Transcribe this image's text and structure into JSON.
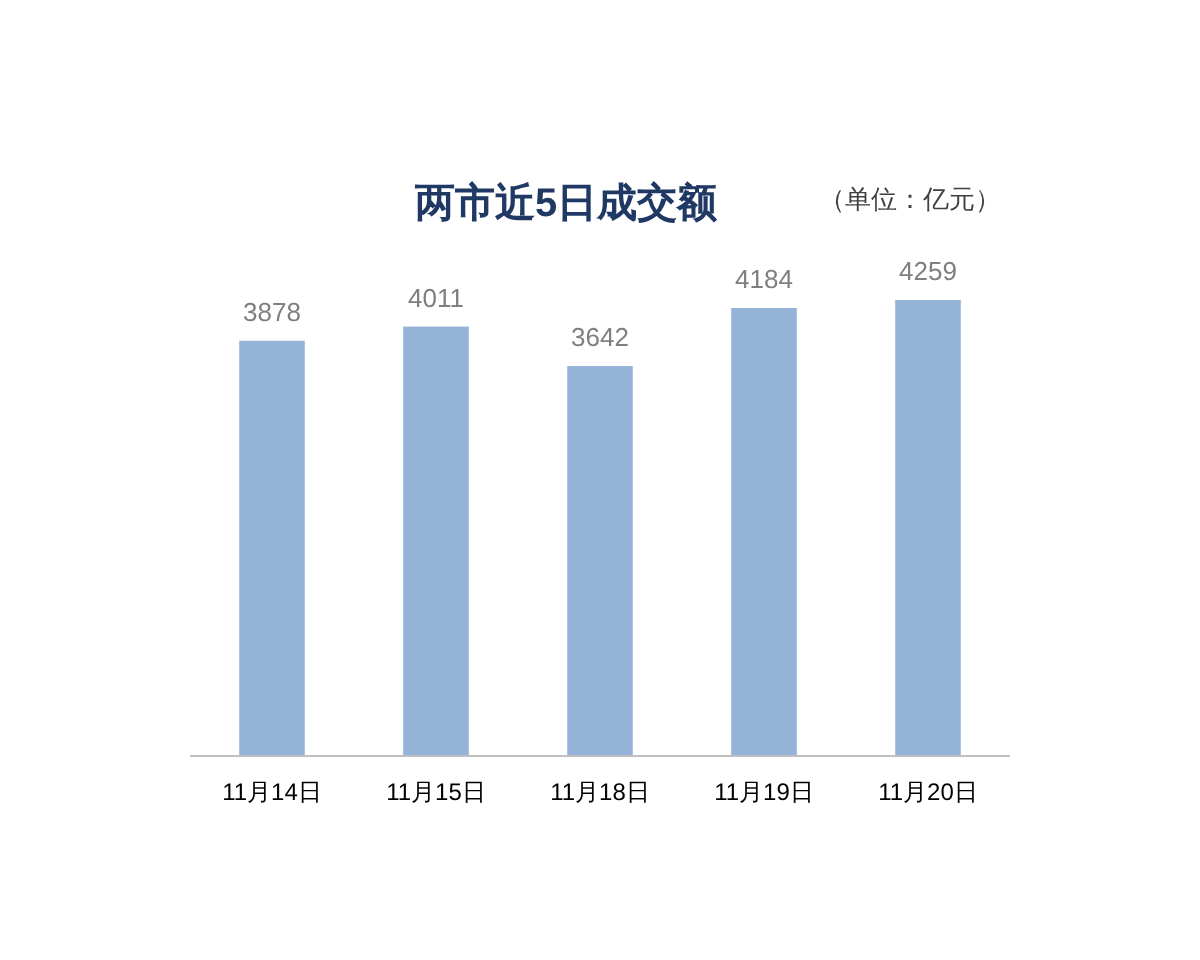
{
  "chart_data": {
    "type": "bar",
    "title": "两市近5日成交额",
    "annotations": [
      "（单位：亿元）"
    ],
    "categories": [
      "11月14日",
      "11月15日",
      "11月18日",
      "11月19日",
      "11月20日"
    ],
    "values": [
      3878,
      4011,
      3642,
      4184,
      4259
    ],
    "color": "#95b3d7",
    "data_labels": true
  }
}
